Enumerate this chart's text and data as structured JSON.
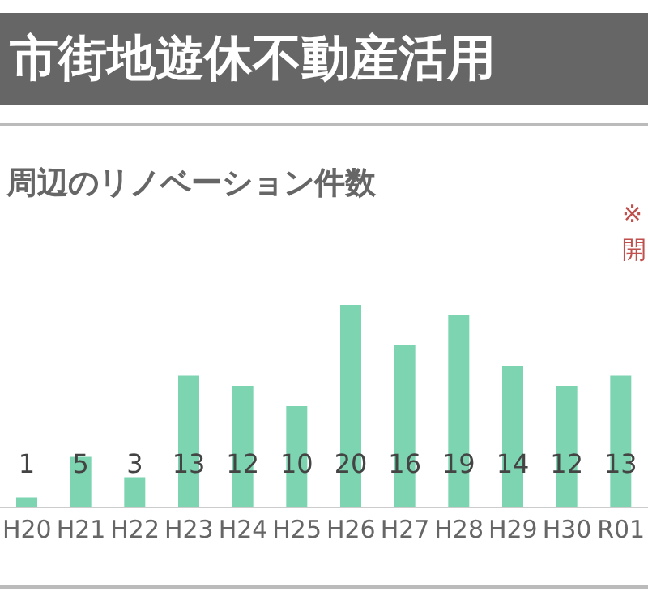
{
  "chart_data": {
    "type": "bar",
    "title": "市街地遊休不動産活用",
    "subtitle": "周辺のリノベーション件数",
    "annotations": [
      "※",
      "開"
    ],
    "categories": [
      "H20",
      "H21",
      "H22",
      "H23",
      "H24",
      "H25",
      "H26",
      "H27",
      "H28",
      "H29",
      "H30",
      "R01"
    ],
    "values": [
      1,
      5,
      3,
      13,
      12,
      10,
      20,
      16,
      19,
      14,
      12,
      13
    ],
    "color": "#7dd4b1",
    "data_labels": true,
    "tick_labels": "x"
  }
}
